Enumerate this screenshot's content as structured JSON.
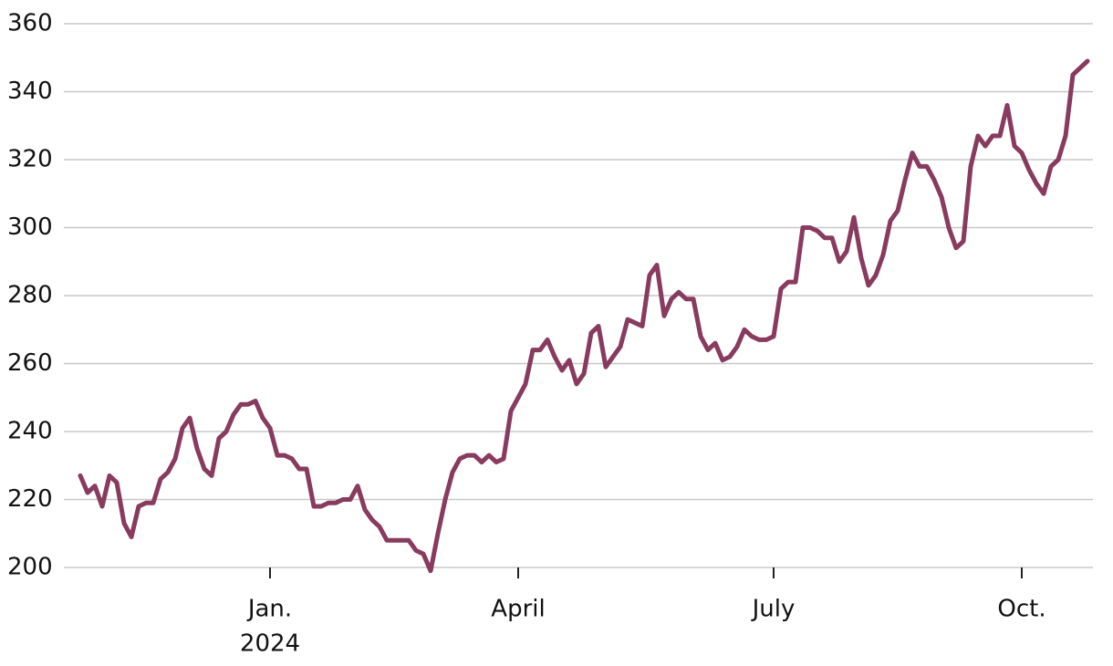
{
  "chart_data": {
    "type": "line",
    "categories": [
      null,
      null,
      null,
      null,
      null,
      null,
      null,
      null,
      null,
      null,
      null,
      null,
      null,
      null,
      null,
      null,
      null,
      null,
      null,
      null,
      null,
      null,
      null,
      null,
      null,
      null,
      "Jan.",
      null,
      null,
      null,
      null,
      null,
      null,
      null,
      null,
      null,
      null,
      null,
      null,
      null,
      null,
      null,
      null,
      null,
      null,
      null,
      null,
      null,
      null,
      null,
      null,
      null,
      null,
      null,
      null,
      null,
      null,
      null,
      null,
      null,
      "April",
      null,
      null,
      null,
      null,
      null,
      null,
      null,
      null,
      null,
      null,
      null,
      null,
      null,
      null,
      null,
      null,
      null,
      null,
      null,
      null,
      null,
      null,
      null,
      null,
      null,
      null,
      null,
      null,
      null,
      null,
      null,
      null,
      null,
      null,
      "July",
      null,
      null,
      null,
      null,
      null,
      null,
      null,
      null,
      null,
      null,
      null,
      null,
      null,
      null,
      null,
      null,
      null,
      null,
      null,
      null,
      null,
      null,
      null,
      null,
      null,
      null,
      null,
      null,
      null,
      null,
      null,
      null,
      null,
      "Oct.",
      null,
      null,
      null,
      null,
      null,
      null,
      null,
      null,
      null
    ],
    "year_label": "2024",
    "series": [
      {
        "color": "#883a5f",
        "values": [
          227,
          222,
          224,
          218,
          227,
          225,
          213,
          209,
          218,
          219,
          219,
          226,
          228,
          232,
          241,
          244,
          235,
          229,
          227,
          238,
          240,
          245,
          248,
          248,
          249,
          244,
          241,
          233,
          233,
          232,
          229,
          229,
          218,
          218,
          219,
          219,
          220,
          220,
          224,
          217,
          214,
          212,
          208,
          208,
          208,
          208,
          205,
          204,
          199,
          210,
          220,
          228,
          232,
          233,
          233,
          231,
          233,
          231,
          232,
          246,
          250,
          254,
          264,
          264,
          267,
          262,
          258,
          261,
          254,
          257,
          269,
          271,
          259,
          262,
          265,
          273,
          272,
          271,
          286,
          289,
          274,
          279,
          281,
          279,
          279,
          268,
          264,
          266,
          261,
          262,
          265,
          270,
          268,
          267,
          267,
          268,
          282,
          284,
          284,
          300,
          300,
          299,
          297,
          297,
          290,
          293,
          303,
          291,
          283,
          286,
          292,
          302,
          305,
          314,
          322,
          318,
          318,
          314,
          309,
          300,
          294,
          296,
          318,
          327,
          324,
          327,
          327,
          336,
          324,
          322,
          317,
          313,
          310,
          318,
          320,
          327,
          345,
          347,
          349
        ]
      }
    ],
    "ylim": [
      200,
      360
    ],
    "yticks": [
      200,
      220,
      240,
      260,
      280,
      300,
      320,
      340,
      360
    ],
    "grid": true
  }
}
